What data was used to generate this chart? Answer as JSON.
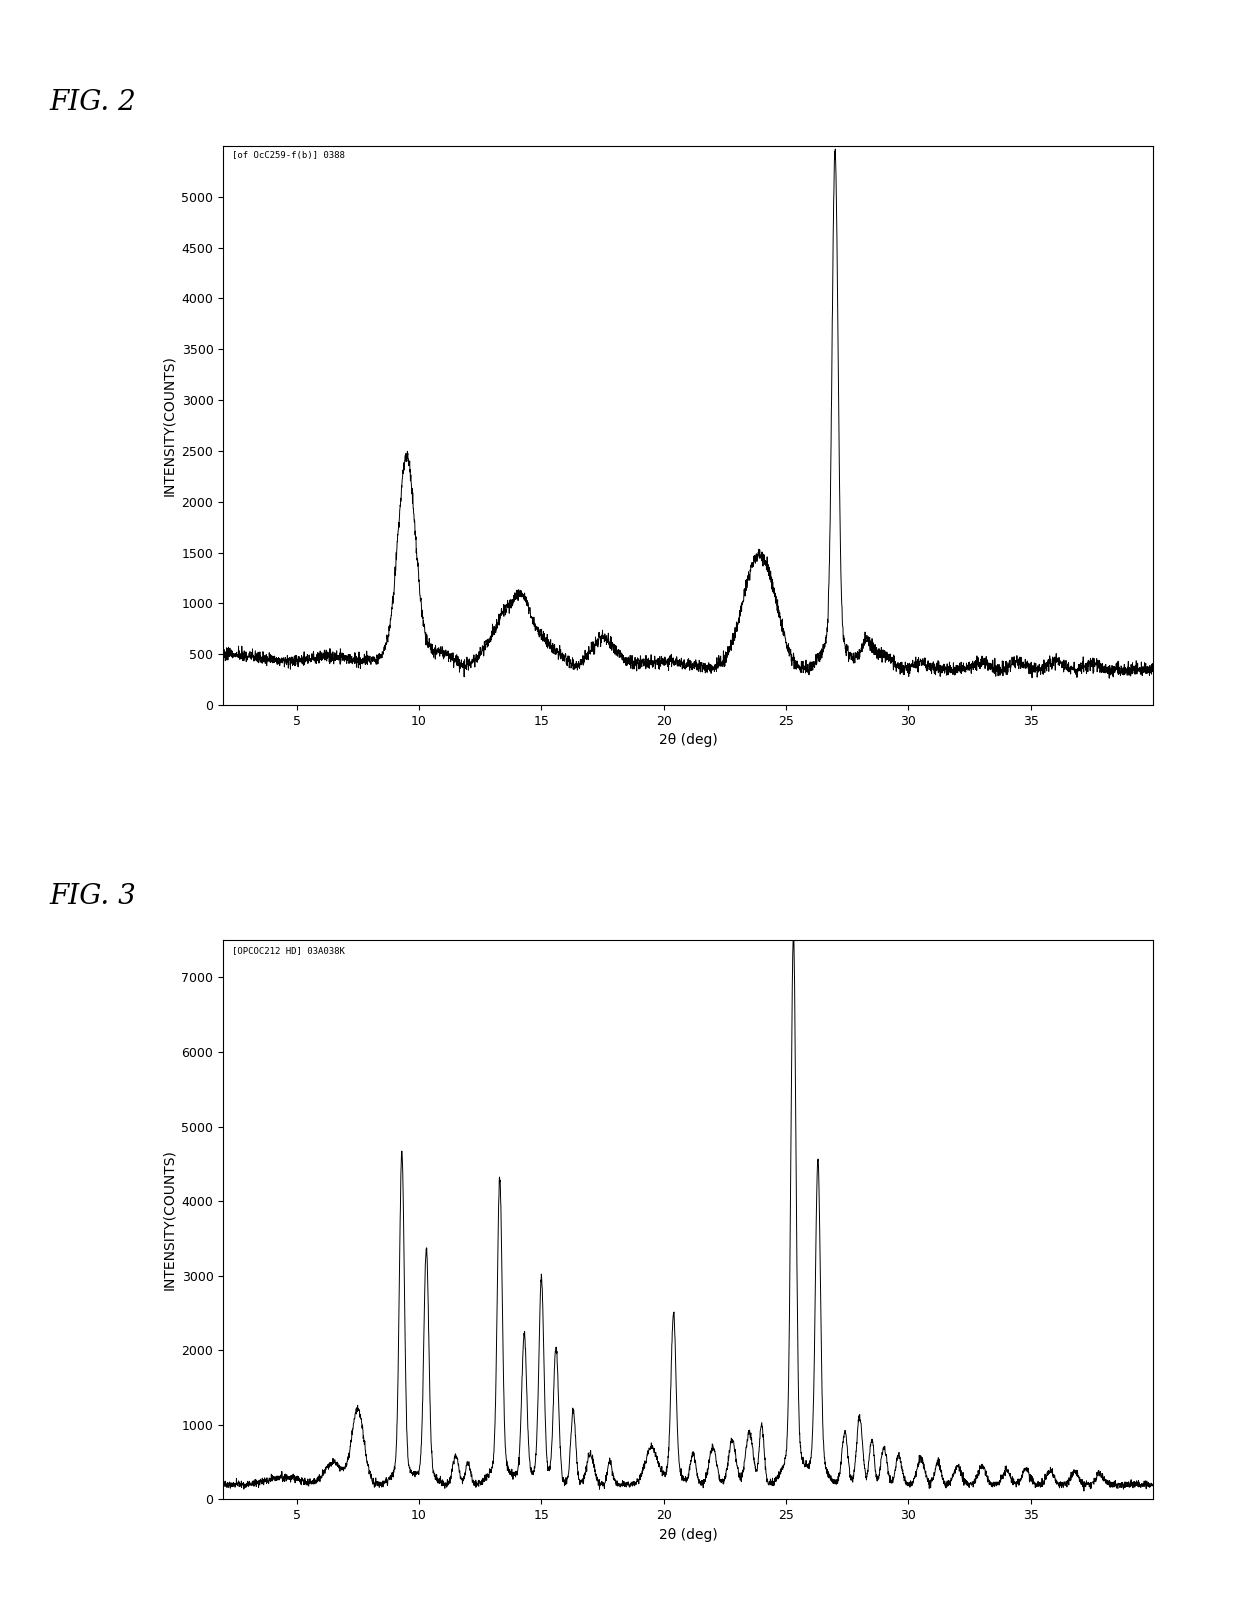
{
  "fig2_label": "FIG. 2",
  "fig3_label": "FIG. 3",
  "fig2_annotation": "[of OcC259-f(b)] 0388",
  "fig3_annotation": "[OPCOC212 HD] 03A038K",
  "xlabel": "2θ (deg)",
  "ylabel": "INTENSITY(COUNTS)",
  "fig2_xlim": [
    2,
    40
  ],
  "fig2_ylim": [
    0,
    5500
  ],
  "fig3_xlim": [
    2,
    40
  ],
  "fig3_ylim": [
    0,
    7500
  ],
  "fig2_yticks": [
    0,
    500,
    1000,
    1500,
    2000,
    2500,
    3000,
    3500,
    4000,
    4500,
    5000
  ],
  "fig3_yticks": [
    0,
    1000,
    2000,
    3000,
    4000,
    5000,
    6000,
    7000
  ],
  "fig2_xticks": [
    5,
    10,
    15,
    20,
    25,
    30,
    35
  ],
  "fig3_xticks": [
    5,
    10,
    15,
    20,
    25,
    30,
    35
  ],
  "line_color": "#000000",
  "line_width": 0.7,
  "bg_color": "#ffffff",
  "label_fontsize": 10,
  "tick_fontsize": 9,
  "annotation_fontsize": 6.5,
  "fig2_seed": 10,
  "fig3_seed": 20
}
